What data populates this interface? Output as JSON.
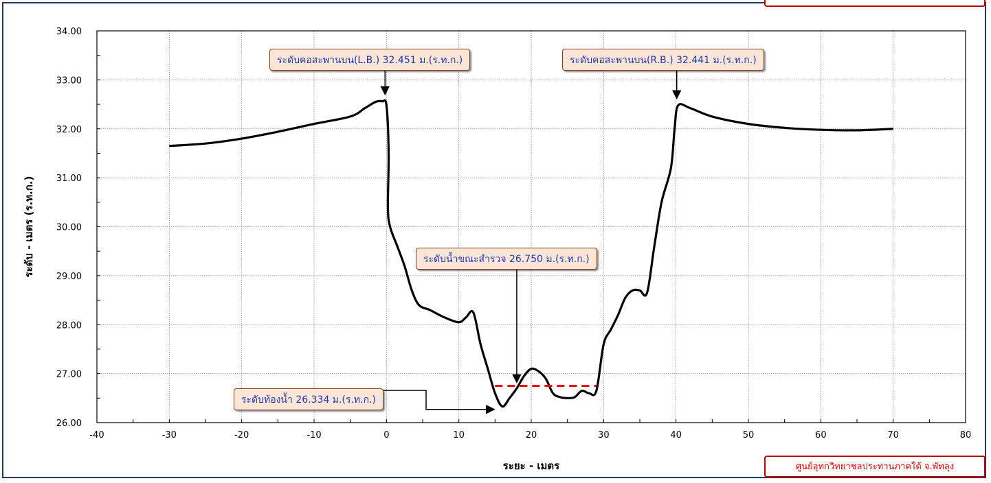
{
  "chart_data": {
    "type": "line",
    "title": "",
    "xlabel": "ระยะ - เมตร",
    "ylabel": "ระดับ - เมตร (ร.ท.ก.)",
    "xlim": [
      -40,
      80
    ],
    "ylim": [
      26,
      34
    ],
    "x_ticks": [
      "-40",
      "-30",
      "-20",
      "-10",
      "0",
      "10",
      "20",
      "30",
      "40",
      "50",
      "60",
      "70",
      "80"
    ],
    "y_ticks": [
      "26.00",
      "27.00",
      "28.00",
      "29.00",
      "30.00",
      "31.00",
      "32.00",
      "33.00",
      "34.00"
    ],
    "grid": true,
    "series": [
      {
        "color": "#000000",
        "points": [
          [
            -30,
            31.65
          ],
          [
            -25,
            31.7
          ],
          [
            -20,
            31.8
          ],
          [
            -15,
            31.94
          ],
          [
            -10,
            32.1
          ],
          [
            -5,
            32.25
          ],
          [
            -3,
            32.42
          ],
          [
            -1.5,
            32.55
          ],
          [
            -0.6,
            32.56
          ],
          [
            0,
            32.48
          ],
          [
            0.3,
            31.5
          ],
          [
            0.2,
            30.4
          ],
          [
            0.5,
            30.0
          ],
          [
            1.5,
            29.6
          ],
          [
            2.5,
            29.2
          ],
          [
            3.5,
            28.7
          ],
          [
            4.5,
            28.4
          ],
          [
            6,
            28.3
          ],
          [
            8,
            28.15
          ],
          [
            10,
            28.05
          ],
          [
            11,
            28.15
          ],
          [
            12,
            28.25
          ],
          [
            13,
            27.6
          ],
          [
            14,
            27.1
          ],
          [
            15,
            26.6
          ],
          [
            16,
            26.33
          ],
          [
            17,
            26.5
          ],
          [
            18,
            26.7
          ],
          [
            19,
            26.95
          ],
          [
            20,
            27.1
          ],
          [
            21,
            27.05
          ],
          [
            22,
            26.9
          ],
          [
            23,
            26.6
          ],
          [
            24,
            26.52
          ],
          [
            25,
            26.5
          ],
          [
            26,
            26.52
          ],
          [
            27,
            26.65
          ],
          [
            28,
            26.6
          ],
          [
            29,
            26.65
          ],
          [
            30,
            27.6
          ],
          [
            31,
            27.9
          ],
          [
            32,
            28.2
          ],
          [
            33,
            28.55
          ],
          [
            34,
            28.7
          ],
          [
            35,
            28.7
          ],
          [
            36,
            28.65
          ],
          [
            37,
            29.6
          ],
          [
            38,
            30.5
          ],
          [
            39.3,
            31.2
          ],
          [
            39.8,
            32.0
          ],
          [
            40.3,
            32.48
          ],
          [
            42,
            32.42
          ],
          [
            45,
            32.25
          ],
          [
            50,
            32.1
          ],
          [
            55,
            32.02
          ],
          [
            60,
            31.98
          ],
          [
            65,
            31.97
          ],
          [
            70,
            32.0
          ]
        ]
      },
      {
        "color": "#ff0000",
        "dashed": true,
        "points": [
          [
            15,
            26.75
          ],
          [
            29,
            26.75
          ]
        ]
      }
    ],
    "annotations": [
      {
        "text": "ระดับคอสะพานบน(L.B.) 32.451 ม.(ร.ท.ก.)",
        "target": [
          -0.2,
          32.7
        ]
      },
      {
        "text": "ระดับคอสะพานบน(R.B.) 32.441 ม.(ร.ท.ก.)",
        "target": [
          40.1,
          32.62
        ]
      },
      {
        "text": "ระดับน้ำขณะสำรวจ 26.750 ม.(ร.ท.ก.)",
        "target": [
          18,
          26.82
        ]
      },
      {
        "text": "ระดับท้องน้ำ 26.334 ม.(ร.ท.ก.)",
        "target": [
          14.9,
          26.27
        ]
      }
    ]
  },
  "credit": "ศูนย์อุทกวิทยาชลประทานภาคใต้ จ.พัทลุง"
}
